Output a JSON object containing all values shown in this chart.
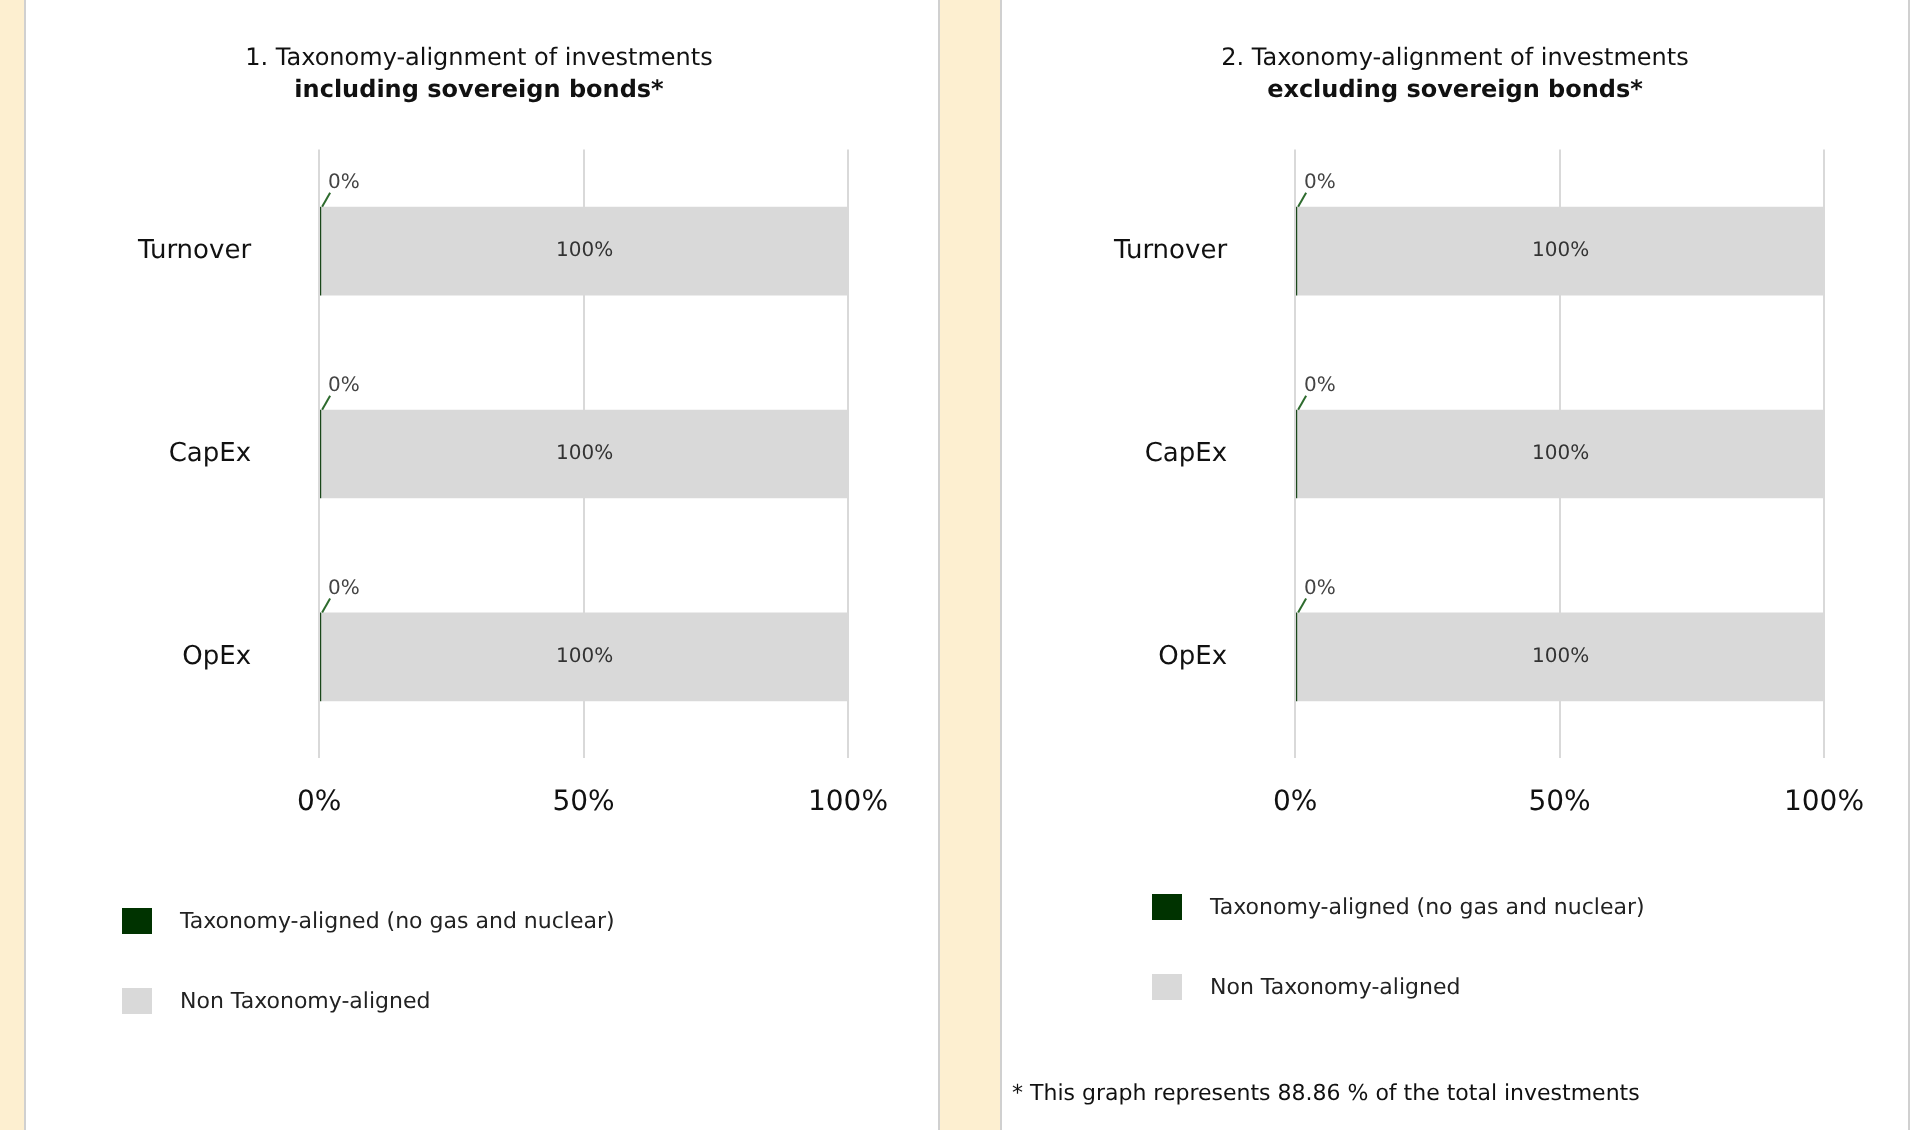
{
  "chart_data": [
    {
      "type": "bar",
      "orientation": "horizontal",
      "stacked": true,
      "title": "1. Taxonomy-alignment of investments",
      "subtitle": "including sovereign bonds*",
      "categories": [
        "Turnover",
        "CapEx",
        "OpEx"
      ],
      "series": [
        {
          "name": "Taxonomy-aligned (no gas and nuclear)",
          "color": "#003300",
          "values": [
            0.4,
            0.4,
            0.4
          ],
          "value_labels": [
            "0%",
            "0%",
            "0%"
          ]
        },
        {
          "name": "Non Taxonomy-aligned",
          "color": "#d9d9d9",
          "values": [
            99.6,
            99.6,
            99.6
          ],
          "value_labels": [
            "100%",
            "100%",
            "100%"
          ]
        }
      ],
      "xlim": [
        0,
        100
      ],
      "xticks": [
        {
          "value": 0,
          "label": "0%"
        },
        {
          "value": 50,
          "label": "50%"
        },
        {
          "value": 100,
          "label": "100%"
        }
      ],
      "grid": "x",
      "legend": "bottom"
    },
    {
      "type": "bar",
      "orientation": "horizontal",
      "stacked": true,
      "title": "2. Taxonomy-alignment of investments",
      "subtitle": "excluding sovereign bonds*",
      "categories": [
        "Turnover",
        "CapEx",
        "OpEx"
      ],
      "series": [
        {
          "name": "Taxonomy-aligned (no gas and nuclear)",
          "color": "#003300",
          "values": [
            0.4,
            0.4,
            0.4
          ],
          "value_labels": [
            "0%",
            "0%",
            "0%"
          ]
        },
        {
          "name": "Non Taxonomy-aligned",
          "color": "#d9d9d9",
          "values": [
            99.6,
            99.6,
            99.6
          ],
          "value_labels": [
            "100%",
            "100%",
            "100%"
          ]
        }
      ],
      "xlim": [
        0,
        100
      ],
      "xticks": [
        {
          "value": 0,
          "label": "0%"
        },
        {
          "value": 50,
          "label": "50%"
        },
        {
          "value": 100,
          "label": "100%"
        }
      ],
      "grid": "x",
      "legend": "bottom",
      "annotations": [
        "* This graph represents 88.86 % of the total investments"
      ]
    }
  ]
}
